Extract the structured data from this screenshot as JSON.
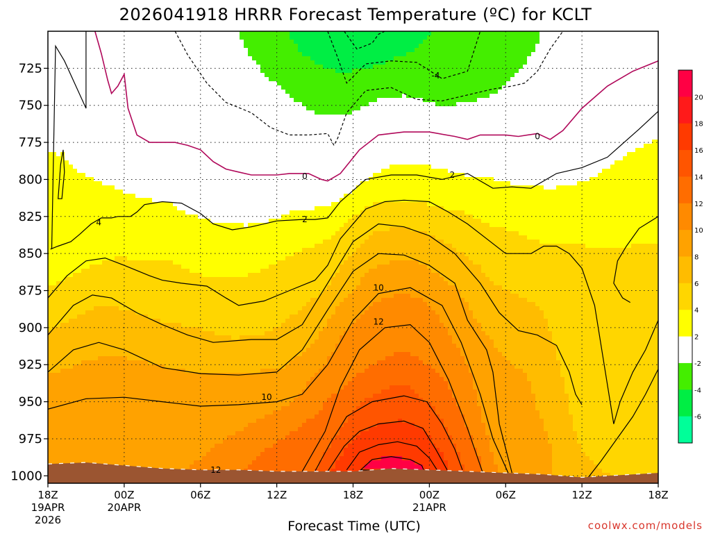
{
  "title": "2026041918 HRRR Forecast Temperature (ºC) for KCLT",
  "credit": "coolwx.com/models",
  "chart_data": {
    "type": "heatmap",
    "title": "2026041918 HRRR Forecast Temperature (ºC) for KCLT",
    "xlabel": "Forecast Time (UTC)",
    "ylabel": "",
    "x_hours_range": [
      0,
      48
    ],
    "y_pressure_range_hpa": [
      700,
      1005
    ],
    "yticks": [
      {
        "p": 725,
        "label": "725"
      },
      {
        "p": 750,
        "label": "750"
      },
      {
        "p": 775,
        "label": "775"
      },
      {
        "p": 800,
        "label": "800"
      },
      {
        "p": 825,
        "label": "825"
      },
      {
        "p": 850,
        "label": "850"
      },
      {
        "p": 875,
        "label": "875"
      },
      {
        "p": 900,
        "label": "900"
      },
      {
        "p": 925,
        "label": "925"
      },
      {
        "p": 950,
        "label": "950"
      },
      {
        "p": 975,
        "label": "975"
      },
      {
        "p": 1000,
        "label": "1000"
      }
    ],
    "xticks": [
      {
        "h": 0,
        "lines": [
          "18Z",
          "19APR",
          "2026"
        ]
      },
      {
        "h": 6,
        "lines": [
          "00Z",
          "20APR"
        ]
      },
      {
        "h": 12,
        "lines": [
          "06Z"
        ]
      },
      {
        "h": 18,
        "lines": [
          "12Z"
        ]
      },
      {
        "h": 24,
        "lines": [
          "18Z"
        ]
      },
      {
        "h": 30,
        "lines": [
          "00Z",
          "21APR"
        ]
      },
      {
        "h": 36,
        "lines": [
          "06Z"
        ]
      },
      {
        "h": 42,
        "lines": [
          "12Z"
        ]
      },
      {
        "h": 48,
        "lines": [
          "18Z"
        ]
      }
    ],
    "grid": true,
    "legend": "right-colorbar",
    "colorbar": {
      "ticks": [
        "20",
        "18",
        "16",
        "14",
        "12",
        "10",
        "8",
        "6",
        "4",
        "2",
        "-2",
        "-4",
        "-6"
      ],
      "bins": [
        {
          "lo": 20,
          "hi": 22,
          "color": "#ff0044"
        },
        {
          "lo": 18,
          "hi": 20,
          "color": "#ff1a1a"
        },
        {
          "lo": 16,
          "hi": 18,
          "color": "#ff3a00"
        },
        {
          "lo": 14,
          "hi": 16,
          "color": "#ff5500"
        },
        {
          "lo": 12,
          "hi": 14,
          "color": "#ff6d00"
        },
        {
          "lo": 10,
          "hi": 12,
          "color": "#ff8a00"
        },
        {
          "lo": 8,
          "hi": 10,
          "color": "#ffa200"
        },
        {
          "lo": 6,
          "hi": 8,
          "color": "#ffbc00"
        },
        {
          "lo": 4,
          "hi": 6,
          "color": "#ffd600"
        },
        {
          "lo": 2,
          "hi": 4,
          "color": "#ffff00"
        },
        {
          "lo": -2,
          "hi": 2,
          "color": "#ffffff"
        },
        {
          "lo": -4,
          "hi": -2,
          "color": "#44ee00"
        },
        {
          "lo": -6,
          "hi": -4,
          "color": "#00ee44"
        },
        {
          "lo": -8,
          "hi": -6,
          "color": "#00ff99"
        }
      ]
    },
    "contour_labels": [
      {
        "text": "-4",
        "h": 30.5,
        "p": 730
      },
      {
        "text": "0",
        "h": 38.5,
        "p": 771
      },
      {
        "text": "0",
        "h": 20.2,
        "p": 798
      },
      {
        "text": "2",
        "h": 31.8,
        "p": 797
      },
      {
        "text": "2",
        "h": 20.2,
        "p": 827
      },
      {
        "text": "4",
        "h": 4.0,
        "p": 829
      },
      {
        "text": "10",
        "h": 26.0,
        "p": 873
      },
      {
        "text": "12",
        "h": 26.0,
        "p": 896
      },
      {
        "text": "10",
        "h": 17.2,
        "p": 947
      },
      {
        "text": "12",
        "h": 13.2,
        "p": 996
      }
    ],
    "ground": {
      "h": [
        0,
        3,
        6,
        9,
        12,
        15,
        18,
        21,
        24,
        27,
        30,
        33,
        36,
        39,
        42,
        44,
        46,
        48
      ],
      "p": [
        992,
        991,
        993,
        995,
        996,
        996,
        997,
        997,
        997,
        995,
        996,
        997,
        998,
        999,
        1001,
        1000,
        999,
        998
      ]
    },
    "series": [
      {
        "name": "",
        "level": 20,
        "closed": true,
        "h": [
          24.6,
          25.5,
          27.0,
          28.5,
          29.4,
          29.6
        ],
        "p": [
          996,
          989,
          987,
          989,
          993,
          997
        ]
      },
      {
        "name": "",
        "level": 18,
        "closed": false,
        "h": [
          23.5,
          24.5,
          26.0,
          27.5,
          29.0,
          30.0,
          30.6
        ],
        "p": [
          996,
          984,
          979,
          977,
          980,
          988,
          996
        ]
      },
      {
        "name": "",
        "level": 16,
        "closed": false,
        "h": [
          22.0,
          23.3,
          24.5,
          26.0,
          28.0,
          29.5,
          30.5,
          31.4
        ],
        "p": [
          997,
          980,
          970,
          965,
          963,
          968,
          982,
          996
        ]
      },
      {
        "name": "",
        "level": 14,
        "closed": false,
        "h": [
          21.0,
          22.2,
          23.5,
          25.5,
          28.0,
          29.8,
          31.0,
          32.0,
          32.6
        ],
        "p": [
          997,
          978,
          960,
          950,
          946,
          950,
          965,
          982,
          996
        ]
      },
      {
        "name": "",
        "level": 12,
        "closed": false,
        "h": [
          20.0,
          21.8,
          23.0,
          24.5,
          26.5,
          28.5,
          30.0,
          31.5,
          33.0,
          34.2
        ],
        "p": [
          997,
          970,
          940,
          915,
          900,
          898,
          910,
          935,
          968,
          998
        ]
      },
      {
        "name": "",
        "level": 10,
        "closed": false,
        "h": [
          0,
          3.0,
          6.0,
          9.0,
          12.0,
          15.0,
          18.0,
          20.0,
          22.0,
          24.0,
          26.0,
          28.5,
          31.0,
          32.5,
          34.0,
          35.0,
          36.2
        ],
        "p": [
          955,
          948,
          947,
          950,
          953,
          952,
          950,
          945,
          925,
          895,
          877,
          873,
          885,
          910,
          945,
          975,
          998
        ]
      },
      {
        "name": "",
        "level": 8,
        "closed": false,
        "h": [
          0,
          2.0,
          4.0,
          6.0,
          9.0,
          12.0,
          15.0,
          18.0,
          20.0,
          22.0,
          24.0,
          26.0,
          28.0,
          30.0,
          32.0,
          33.0,
          34.5,
          35.0,
          35.5,
          36.5
        ],
        "p": [
          930,
          915,
          910,
          915,
          927,
          931,
          932,
          930,
          915,
          888,
          862,
          850,
          851,
          858,
          870,
          895,
          915,
          930,
          965,
          998
        ]
      },
      {
        "name": "",
        "level": 6,
        "closed": false,
        "h": [
          0,
          2.0,
          3.5,
          5.0,
          7.0,
          9.0,
          11.0,
          13.0,
          16.0,
          18.0,
          20.0,
          22.0,
          24.0,
          26.0,
          28.0,
          30.0,
          32.0,
          34.0,
          35.5,
          37.0,
          38.5,
          40.0,
          41.0,
          41.5,
          42.0
        ],
        "p": [
          905,
          885,
          878,
          880,
          890,
          898,
          905,
          910,
          908,
          908,
          898,
          870,
          842,
          830,
          832,
          838,
          850,
          870,
          890,
          902,
          905,
          912,
          930,
          945,
          952
        ]
      },
      {
        "name": "",
        "level": 6,
        "closed": false,
        "h": [
          42.5,
          43.5,
          45.0,
          46.0,
          47.0,
          48.0
        ],
        "p": [
          1001,
          990,
          972,
          960,
          945,
          928
        ]
      },
      {
        "name": "",
        "level": 4,
        "closed": false,
        "h": [
          0,
          1.5,
          3.0,
          4.5,
          6.0,
          8.0,
          9.0,
          10.5,
          12.5,
          14.0,
          15.0,
          17.0,
          19.0,
          21.0,
          22.0,
          23.0,
          25.0,
          26.5,
          28.0,
          30.0,
          31.5,
          33.0,
          34.5,
          36.0,
          38.0,
          39.0,
          40.0,
          41.0,
          42.0,
          43.0,
          44.5,
          45.0,
          46.0,
          47.0,
          48.0
        ],
        "p": [
          880,
          865,
          855,
          853,
          858,
          865,
          868,
          870,
          872,
          880,
          885,
          882,
          875,
          868,
          858,
          840,
          820,
          815,
          814,
          815,
          822,
          830,
          840,
          850,
          850,
          845,
          845,
          850,
          860,
          885,
          965,
          950,
          930,
          915,
          895
        ]
      },
      {
        "name": "",
        "level": 4,
        "closed": false,
        "h": [
          48.0,
          46.5,
          45.5,
          44.8,
          44.5,
          45.2,
          45.8
        ],
        "p": [
          825,
          833,
          845,
          855,
          870,
          880,
          883
        ]
      },
      {
        "name": "",
        "level": 2,
        "closed": false,
        "h": [
          0.2,
          0.8,
          1.8,
          2.5,
          3.4,
          4.2,
          5.0,
          5.5,
          6.5,
          7.0,
          7.6,
          9.0,
          10.5,
          12.0,
          13.0,
          14.5,
          16.0,
          18.0,
          20.0,
          21.0,
          22.0,
          23.0,
          25.0,
          27.0,
          29.0,
          31.0,
          33.0,
          35.0,
          36.5,
          38.0,
          40.0,
          42.0,
          44.0,
          46.5,
          48.0
        ],
        "p": [
          847,
          845,
          842,
          837,
          830,
          826,
          826,
          825,
          825,
          822,
          817,
          815,
          816,
          823,
          830,
          834,
          832,
          828,
          827,
          827,
          826,
          815,
          800,
          797,
          797,
          800,
          796,
          806,
          805,
          806,
          796,
          792,
          785,
          766,
          754
        ]
      },
      {
        "name": "",
        "level": 2,
        "closed": false,
        "h": [
          0.3,
          0.6,
          1.3,
          3.0,
          3.0
        ],
        "p": [
          847,
          710,
          720,
          752,
          700
        ]
      },
      {
        "name": "",
        "level": 2,
        "closed": true,
        "h": [
          0.8,
          1.0,
          1.2,
          1.3,
          1.1
        ],
        "p": [
          813,
          790,
          780,
          795,
          813
        ]
      },
      {
        "name": "",
        "level": 0,
        "closed": false,
        "h": [
          3.7,
          4.2,
          4.7,
          5.0,
          5.5,
          6.0,
          6.3,
          7.0,
          8.0,
          9.0,
          10.0,
          11.0,
          12.0,
          13.0,
          14.0,
          15.0,
          16.0,
          18.0,
          19.0,
          20.5,
          21.5,
          22.0,
          23.0,
          24.5,
          26.0,
          28.0,
          30.0,
          32.0,
          33.0,
          34.0,
          36.0,
          37.0,
          38.5,
          39.5,
          40.5,
          42.0,
          44.0,
          46.0,
          48.0
        ],
        "p": [
          700,
          715,
          733,
          742,
          737,
          729,
          752,
          770,
          775,
          775,
          775,
          777,
          780,
          788,
          793,
          795,
          797,
          797,
          796,
          796,
          800,
          801,
          796,
          780,
          770,
          768,
          768,
          771,
          773,
          770,
          770,
          771,
          769,
          773,
          767,
          752,
          737,
          727,
          720
        ]
      },
      {
        "name": "",
        "level": -2,
        "closed": false,
        "h": [
          10.0,
          11.0,
          12.5,
          14.0,
          16.0,
          17.5,
          19.0,
          20.5,
          22.0,
          22.5,
          22.8,
          23.5,
          25.0,
          27.0,
          29.0,
          31.0,
          33.0,
          35.0,
          36.5,
          37.5,
          38.5,
          39.5,
          40.5
        ],
        "p": [
          700,
          716,
          735,
          748,
          755,
          765,
          770,
          770,
          769,
          777,
          772,
          755,
          740,
          738,
          746,
          747,
          743,
          739,
          737,
          735,
          727,
          712,
          700
        ]
      },
      {
        "name": "",
        "level": -4,
        "closed": false,
        "h": [
          22.0,
          22.8,
          23.5,
          25.0,
          27.0,
          29.0,
          31.0,
          33.0,
          34.0
        ],
        "p": [
          700,
          718,
          735,
          722,
          720,
          721,
          732,
          727,
          700
        ]
      },
      {
        "name": "",
        "level": -6,
        "closed": false,
        "h": [
          23.3,
          23.8,
          24.3,
          25.5,
          26.0,
          26.5
        ],
        "p": [
          700,
          706,
          712,
          708,
          702,
          700
        ]
      }
    ]
  }
}
